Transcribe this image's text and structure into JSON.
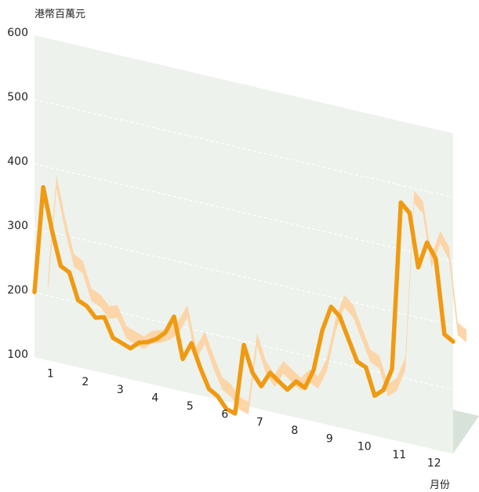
{
  "chart_data": {
    "type": "line",
    "ylabel": "港幣百萬元",
    "xlabel": "月份",
    "ylim": [
      100,
      600
    ],
    "yticks": [
      "100",
      "200",
      "300",
      "400",
      "500",
      "600"
    ],
    "categories": [
      "1",
      "2",
      "3",
      "4",
      "5",
      "6",
      "7",
      "8",
      "9",
      "10",
      "11",
      "12"
    ],
    "xlim": [
      0.5,
      12.5
    ],
    "grid": true,
    "colors": {
      "line": "#f09a12",
      "shadow": "#fcd5a8",
      "back_wall": "#edf2ec",
      "floor": "#d7e3d9",
      "grid": "#ffffff"
    },
    "series": [
      {
        "x": [
          0.5,
          0.75,
          1.0,
          1.25,
          1.5,
          1.75,
          2.0,
          2.25,
          2.5,
          2.75,
          3.0,
          3.25,
          3.5,
          3.75,
          4.0,
          4.25,
          4.5,
          4.75,
          5.0,
          5.25,
          5.5,
          5.75,
          6.0,
          6.25,
          6.5,
          6.75,
          7.0,
          7.25,
          7.5,
          7.75,
          8.0,
          8.25,
          8.5,
          8.75,
          9.0,
          9.25,
          9.5,
          9.75,
          10.0,
          10.25,
          10.5,
          10.75,
          11.0,
          11.25,
          11.5,
          11.75,
          12.0,
          12.25,
          12.5
        ],
        "values": [
          201,
          367,
          303,
          251,
          244,
          204,
          198,
          183,
          187,
          158,
          153,
          148,
          160,
          164,
          172,
          185,
          213,
          150,
          178,
          143,
          113,
          105,
          88,
          84,
          194,
          154,
          136,
          160,
          150,
          140,
          156,
          149,
          180,
          245,
          285,
          273,
          241,
          209,
          203,
          162,
          174,
          210,
          473,
          460,
          378,
          420,
          398,
          283,
          275
        ]
      }
    ]
  }
}
